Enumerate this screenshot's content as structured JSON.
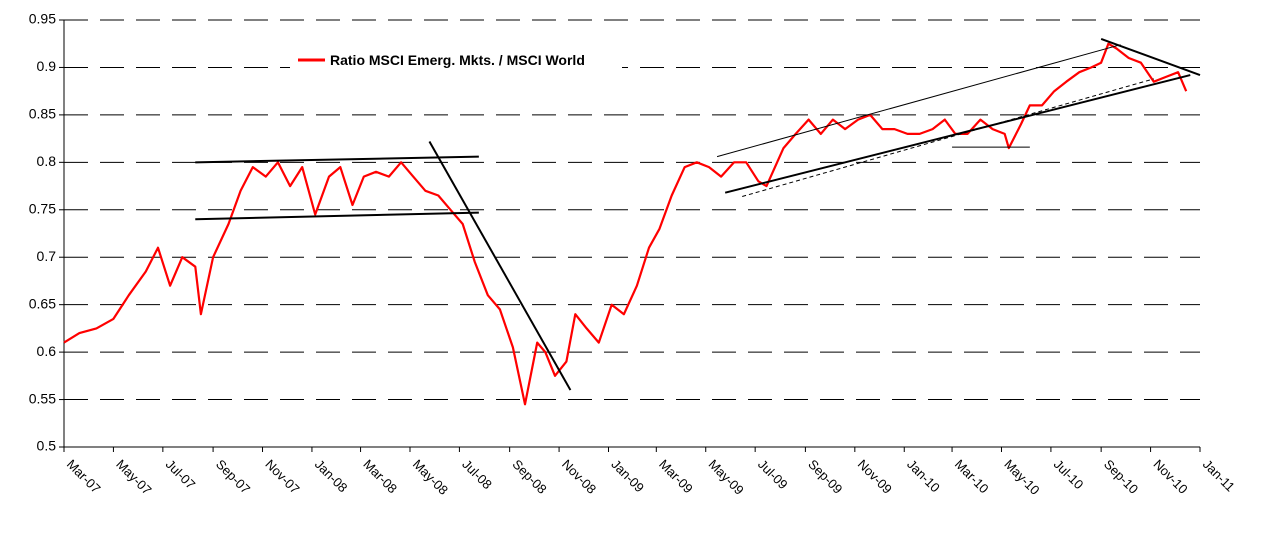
{
  "chart_data": {
    "type": "line",
    "title": "",
    "xlabel": "",
    "ylabel": "",
    "ylim": [
      0.5,
      0.95
    ],
    "yticks": [
      "0.5",
      "0.55",
      "0.6",
      "0.65",
      "0.7",
      "0.75",
      "0.8",
      "0.85",
      "0.9",
      "0.95"
    ],
    "xticks": [
      "Mar-07",
      "May-07",
      "Jul-07",
      "Sep-07",
      "Nov-07",
      "Jan-08",
      "Mar-08",
      "May-08",
      "Jul-08",
      "Sep-08",
      "Nov-08",
      "Jan-09",
      "Mar-09",
      "May-09",
      "Jul-09",
      "Sep-09",
      "Nov-09",
      "Jan-10",
      "Mar-10",
      "May-10",
      "Jul-10",
      "Sep-10",
      "Nov-10",
      "Jan-11"
    ],
    "grid": "horizontal-dashed",
    "legend_position": "top-left",
    "line_color": "#ff0000",
    "series": [
      {
        "name": "Ratio MSCI Emerg. Mkts. / MSCI World",
        "x": [
          "2007-03-01",
          "2007-03-20",
          "2007-04-10",
          "2007-05-01",
          "2007-05-20",
          "2007-06-10",
          "2007-06-25",
          "2007-07-10",
          "2007-07-25",
          "2007-08-10",
          "2007-08-17",
          "2007-09-01",
          "2007-09-20",
          "2007-10-05",
          "2007-10-20",
          "2007-11-05",
          "2007-11-20",
          "2007-12-05",
          "2007-12-20",
          "2008-01-05",
          "2008-01-22",
          "2008-02-05",
          "2008-02-20",
          "2008-03-05",
          "2008-03-20",
          "2008-04-05",
          "2008-04-20",
          "2008-05-05",
          "2008-05-20",
          "2008-06-05",
          "2008-06-20",
          "2008-07-05",
          "2008-07-20",
          "2008-08-05",
          "2008-08-20",
          "2008-09-05",
          "2008-09-20",
          "2008-10-05",
          "2008-10-15",
          "2008-10-27",
          "2008-11-10",
          "2008-11-21",
          "2008-12-05",
          "2008-12-20",
          "2009-01-05",
          "2009-01-20",
          "2009-02-05",
          "2009-02-20",
          "2009-03-05",
          "2009-03-20",
          "2009-04-05",
          "2009-04-20",
          "2009-05-05",
          "2009-05-20",
          "2009-06-05",
          "2009-06-20",
          "2009-07-05",
          "2009-07-15",
          "2009-08-05",
          "2009-08-20",
          "2009-09-05",
          "2009-09-20",
          "2009-10-05",
          "2009-10-20",
          "2009-11-05",
          "2009-11-20",
          "2009-12-05",
          "2009-12-20",
          "2010-01-05",
          "2010-01-20",
          "2010-02-05",
          "2010-02-20",
          "2010-03-05",
          "2010-03-20",
          "2010-04-05",
          "2010-04-20",
          "2010-05-05",
          "2010-05-10",
          "2010-05-25",
          "2010-06-05",
          "2010-06-20",
          "2010-07-05",
          "2010-07-20",
          "2010-08-05",
          "2010-08-20",
          "2010-09-01",
          "2010-09-10",
          "2010-09-20",
          "2010-10-05",
          "2010-10-20",
          "2010-11-05",
          "2010-11-20",
          "2010-12-05",
          "2010-12-15"
        ],
        "values": [
          0.61,
          0.62,
          0.625,
          0.635,
          0.66,
          0.685,
          0.71,
          0.67,
          0.7,
          0.69,
          0.64,
          0.7,
          0.735,
          0.77,
          0.795,
          0.785,
          0.8,
          0.775,
          0.795,
          0.745,
          0.785,
          0.795,
          0.755,
          0.785,
          0.79,
          0.785,
          0.8,
          0.785,
          0.77,
          0.765,
          0.75,
          0.735,
          0.695,
          0.66,
          0.645,
          0.605,
          0.545,
          0.61,
          0.6,
          0.575,
          0.59,
          0.64,
          0.625,
          0.61,
          0.65,
          0.64,
          0.67,
          0.71,
          0.73,
          0.765,
          0.795,
          0.8,
          0.795,
          0.785,
          0.8,
          0.8,
          0.78,
          0.775,
          0.815,
          0.83,
          0.845,
          0.83,
          0.845,
          0.835,
          0.845,
          0.85,
          0.835,
          0.835,
          0.83,
          0.83,
          0.835,
          0.845,
          0.83,
          0.83,
          0.845,
          0.835,
          0.83,
          0.815,
          0.84,
          0.86,
          0.86,
          0.875,
          0.885,
          0.895,
          0.9,
          0.905,
          0.925,
          0.92,
          0.91,
          0.905,
          0.885,
          0.89,
          0.895,
          0.875
        ]
      }
    ],
    "trendlines": [
      {
        "style": "solid",
        "width": 2,
        "from": {
          "x": "2007-08-10",
          "y": 0.8
        },
        "to": {
          "x": "2008-07-25",
          "y": 0.806
        }
      },
      {
        "style": "solid",
        "width": 2,
        "from": {
          "x": "2007-08-10",
          "y": 0.74
        },
        "to": {
          "x": "2008-07-25",
          "y": 0.747
        }
      },
      {
        "style": "solid",
        "width": 2,
        "from": {
          "x": "2008-05-25",
          "y": 0.822
        },
        "to": {
          "x": "2008-11-15",
          "y": 0.56
        }
      },
      {
        "style": "solid",
        "width": 2,
        "from": {
          "x": "2009-05-25",
          "y": 0.768
        },
        "to": {
          "x": "2010-12-20",
          "y": 0.892
        }
      },
      {
        "style": "solid",
        "width": 1,
        "from": {
          "x": "2009-05-15",
          "y": 0.806
        },
        "to": {
          "x": "2010-09-25",
          "y": 0.924
        }
      },
      {
        "style": "solid",
        "width": 2,
        "from": {
          "x": "2010-09-01",
          "y": 0.93
        },
        "to": {
          "x": "2011-01-01",
          "y": 0.892
        }
      },
      {
        "style": "dashed",
        "width": 1,
        "from": {
          "x": "2009-06-15",
          "y": 0.764
        },
        "to": {
          "x": "2010-11-05",
          "y": 0.888
        }
      },
      {
        "style": "solid",
        "width": 1,
        "from": {
          "x": "2010-03-01",
          "y": 0.816
        },
        "to": {
          "x": "2010-06-05",
          "y": 0.816
        }
      }
    ]
  }
}
